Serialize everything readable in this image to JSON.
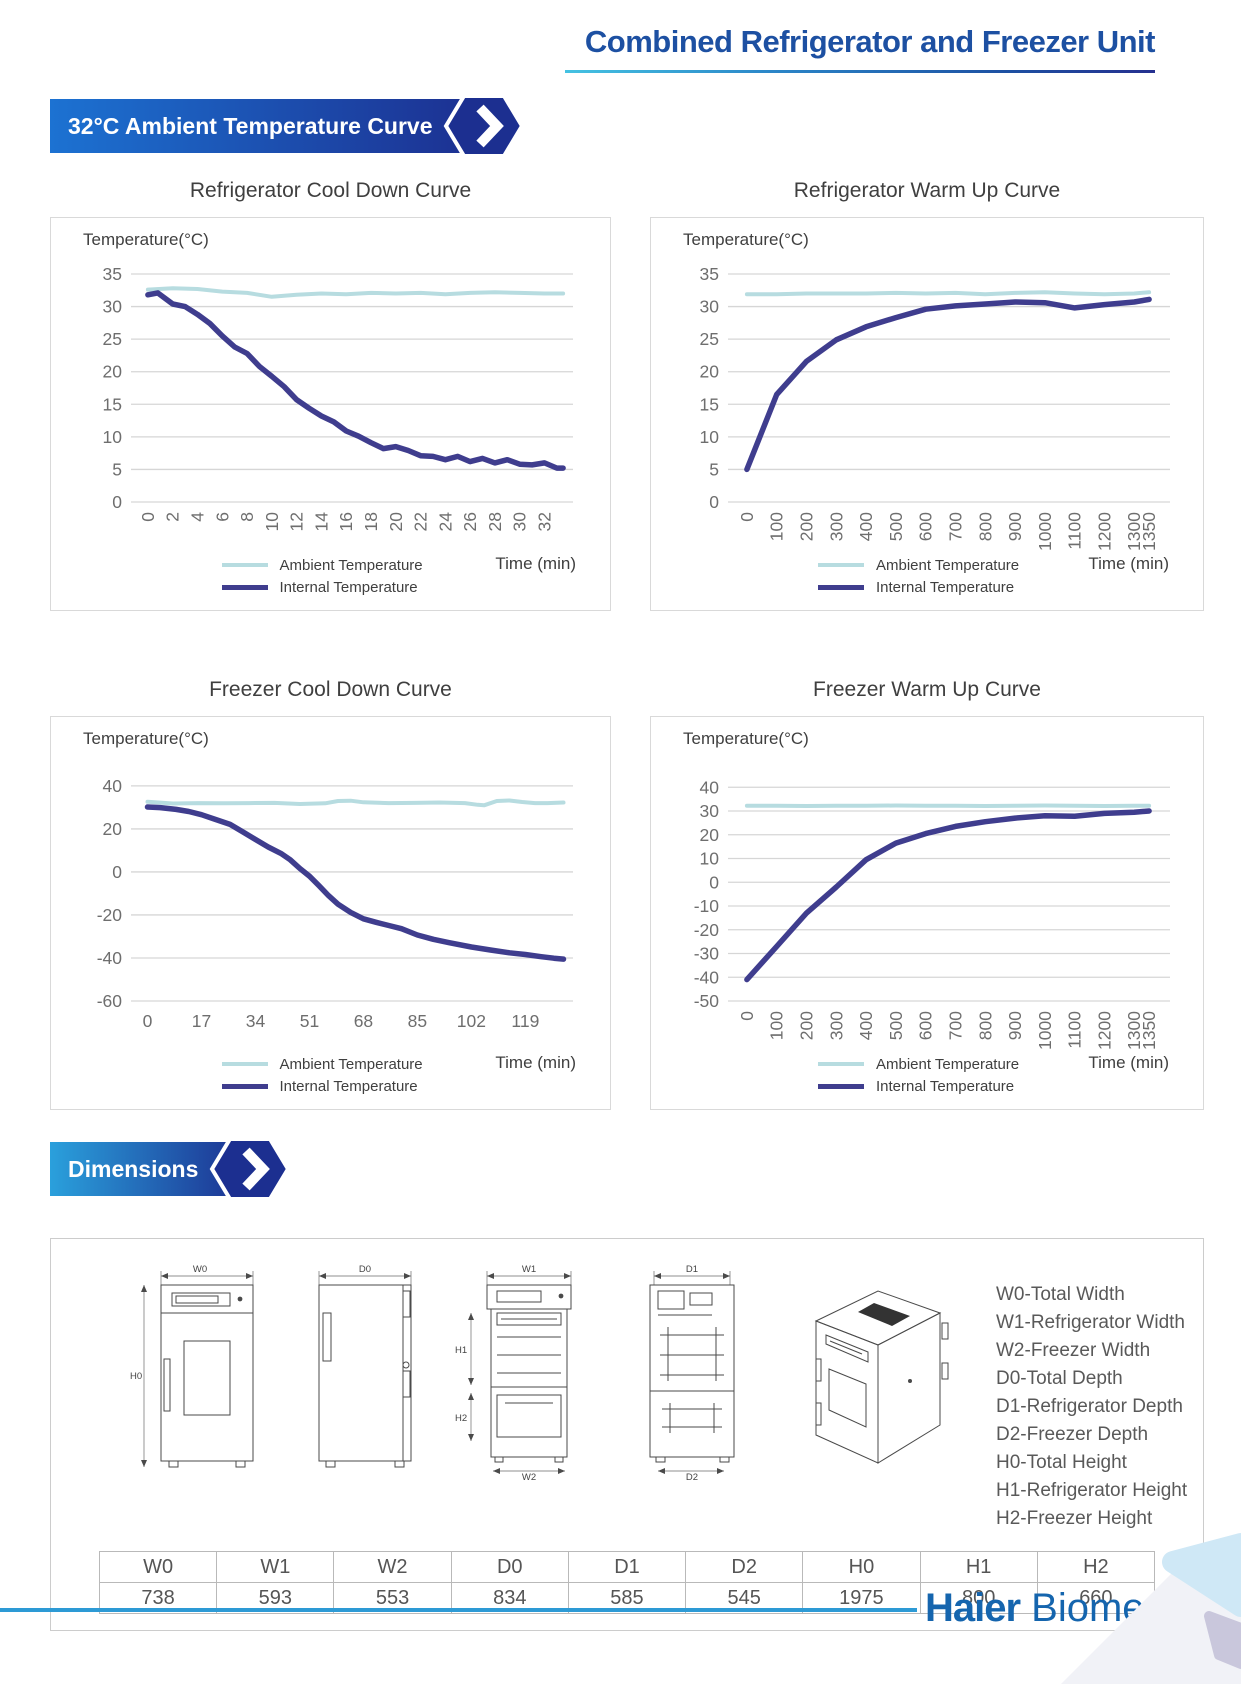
{
  "header": {
    "title": "Combined Refrigerator and Freezer Unit"
  },
  "sections": {
    "curves": "32°C Ambient Temperature Curve",
    "dimensions": "Dimensions"
  },
  "footer": {
    "brand_bold": "Haier",
    "brand_rest": " Biomedical"
  },
  "colors": {
    "accent_blue": "#1d50a2",
    "banner_start": "#1c72d2",
    "banner_end": "#1c2f90",
    "ambient_line": "#b7dce0",
    "internal_line": "#3f3d8e",
    "grid": "#d6d6d6",
    "footer_rule": "#2d9ad5"
  },
  "chart_data": [
    {
      "type": "line",
      "title": "Refrigerator Cool Down Curve",
      "ylabel": "Temperature(°C)",
      "xlabel": "Time (min)",
      "ylim": [
        0,
        35
      ],
      "yticks": [
        35,
        30,
        25,
        20,
        15,
        10,
        5,
        0
      ],
      "xlim": [
        -0.8,
        34.3
      ],
      "xticks": [
        0,
        2,
        4,
        6,
        8,
        10,
        12,
        14,
        16,
        18,
        20,
        22,
        24,
        26,
        28,
        30,
        32
      ],
      "x_tick_rotated": true,
      "grid": true,
      "legend_position": "bottom",
      "series": [
        {
          "name": "Ambient Temperature",
          "x": [
            0,
            2,
            4,
            6,
            8,
            10,
            12,
            14,
            16,
            18,
            20,
            22,
            24,
            26,
            28,
            30,
            32,
            33.5
          ],
          "y": [
            32.6,
            32.8,
            32.7,
            32.3,
            32.1,
            31.5,
            31.8,
            32.0,
            31.9,
            32.1,
            32.0,
            32.1,
            31.9,
            32.1,
            32.2,
            32.1,
            32.0,
            32.0
          ]
        },
        {
          "name": "Internal Temperature",
          "x": [
            0,
            0.8,
            2,
            3,
            4,
            5,
            6,
            7,
            8,
            9,
            10,
            11,
            12,
            13,
            14,
            15,
            16,
            17,
            18,
            19,
            20,
            21,
            22,
            23,
            24,
            25,
            26,
            27,
            28,
            29,
            30,
            31,
            32,
            33,
            33.5
          ],
          "y": [
            31.8,
            32.1,
            30.4,
            30.0,
            28.8,
            27.4,
            25.5,
            23.8,
            22.8,
            20.8,
            19.3,
            17.7,
            15.7,
            14.4,
            13.2,
            12.3,
            10.9,
            10.1,
            9.1,
            8.2,
            8.5,
            7.9,
            7.1,
            7.0,
            6.5,
            7.0,
            6.2,
            6.7,
            6.0,
            6.5,
            5.8,
            5.7,
            6.0,
            5.2,
            5.2
          ]
        }
      ]
    },
    {
      "type": "line",
      "title": "Refrigerator Warm Up Curve",
      "ylabel": "Temperature(°C)",
      "xlabel": "Time (min)",
      "ylim": [
        0,
        35
      ],
      "yticks": [
        35,
        30,
        25,
        20,
        15,
        10,
        5,
        0
      ],
      "xlim": [
        -40,
        1420
      ],
      "xticks": [
        0,
        100,
        200,
        300,
        400,
        500,
        600,
        700,
        800,
        900,
        1000,
        1100,
        1200,
        1300,
        1350
      ],
      "x_tick_rotated": true,
      "grid": true,
      "legend_position": "bottom",
      "series": [
        {
          "name": "Ambient Temperature",
          "x": [
            0,
            100,
            200,
            300,
            400,
            500,
            600,
            700,
            800,
            900,
            1000,
            1100,
            1200,
            1300,
            1350
          ],
          "y": [
            31.9,
            31.9,
            32.0,
            32.0,
            32.0,
            32.1,
            32.0,
            32.1,
            31.9,
            32.1,
            32.2,
            32.0,
            31.9,
            32.0,
            32.2
          ]
        },
        {
          "name": "Internal Temperature",
          "x": [
            0,
            100,
            200,
            300,
            400,
            500,
            600,
            700,
            800,
            900,
            1000,
            1100,
            1200,
            1300,
            1350
          ],
          "y": [
            5.0,
            16.5,
            21.6,
            24.9,
            26.9,
            28.3,
            29.6,
            30.1,
            30.4,
            30.7,
            30.6,
            29.8,
            30.3,
            30.7,
            31.1
          ]
        }
      ]
    },
    {
      "type": "line",
      "title": "Freezer Cool Down Curve",
      "ylabel": "Temperature(°C)",
      "xlabel": "Time (min)",
      "ylim": [
        -60,
        46
      ],
      "yticks": [
        40,
        20,
        0,
        -20,
        -40,
        -60
      ],
      "xlim": [
        -3,
        134
      ],
      "xticks": [
        0,
        17,
        34,
        51,
        68,
        85,
        102,
        119
      ],
      "x_tick_rotated": false,
      "grid": true,
      "legend_position": "bottom",
      "series": [
        {
          "name": "Ambient Temperature",
          "x": [
            0,
            8,
            16,
            24,
            32,
            40,
            48,
            56,
            60,
            64,
            68,
            76,
            84,
            92,
            100,
            104,
            106,
            110,
            114,
            118,
            122,
            126,
            131
          ],
          "y": [
            32.6,
            31.8,
            32.0,
            31.9,
            32.0,
            32.1,
            31.6,
            31.9,
            33.0,
            33.1,
            32.4,
            32.0,
            32.1,
            32.3,
            32.0,
            31.2,
            31.0,
            33.0,
            33.2,
            32.5,
            32.0,
            32.0,
            32.3
          ]
        },
        {
          "name": "Internal Temperature",
          "x": [
            0,
            4,
            9,
            13,
            17,
            21,
            26,
            30,
            34,
            38,
            42,
            45,
            48,
            51,
            54,
            57,
            60,
            64,
            68,
            72,
            76,
            80,
            85,
            90,
            95,
            102,
            108,
            114,
            119,
            124,
            128,
            131
          ],
          "y": [
            30.2,
            29.9,
            29.1,
            28.1,
            26.6,
            24.6,
            22.1,
            18.6,
            15.1,
            11.6,
            8.6,
            5.6,
            1.6,
            -2.0,
            -6.4,
            -11.0,
            -15.0,
            -18.8,
            -21.8,
            -23.4,
            -24.9,
            -26.4,
            -29.3,
            -31.3,
            -32.9,
            -34.9,
            -36.3,
            -37.6,
            -38.4,
            -39.4,
            -40.1,
            -40.5
          ]
        }
      ]
    },
    {
      "type": "line",
      "title": "Freezer Warm Up Curve",
      "ylabel": "Temperature(°C)",
      "xlabel": "Time (min)",
      "ylim": [
        -50,
        46
      ],
      "yticks": [
        40,
        30,
        20,
        10,
        0,
        -10,
        -20,
        -30,
        -40,
        -50
      ],
      "xlim": [
        -40,
        1420
      ],
      "xticks": [
        0,
        100,
        200,
        300,
        400,
        500,
        600,
        700,
        800,
        900,
        1000,
        1100,
        1200,
        1300,
        1350
      ],
      "x_tick_rotated": true,
      "grid": true,
      "legend_position": "bottom",
      "series": [
        {
          "name": "Ambient Temperature",
          "x": [
            0,
            100,
            200,
            300,
            400,
            500,
            600,
            700,
            800,
            900,
            1000,
            1100,
            1200,
            1300,
            1350
          ],
          "y": [
            32.2,
            32.2,
            32.1,
            32.2,
            32.2,
            32.3,
            32.2,
            32.2,
            32.1,
            32.2,
            32.3,
            32.2,
            32.1,
            32.2,
            32.2
          ]
        },
        {
          "name": "Internal Temperature",
          "x": [
            0,
            100,
            200,
            300,
            400,
            500,
            600,
            700,
            800,
            900,
            1000,
            1100,
            1200,
            1300,
            1350
          ],
          "y": [
            -41,
            -27,
            -13,
            -2,
            9.5,
            16.5,
            20.5,
            23.5,
            25.5,
            27,
            28,
            27.8,
            29,
            29.5,
            30
          ]
        }
      ]
    }
  ],
  "dimensions": {
    "legend": [
      "W0-Total Width",
      "W1-Refrigerator Width",
      "W2-Freezer Width",
      "D0-Total Depth",
      "D1-Refrigerator Depth",
      "D2-Freezer Depth",
      "H0-Total Height",
      "H1-Refrigerator Height",
      "H2-Freezer Height"
    ],
    "drawing_labels": {
      "w0": "W0",
      "h0": "H0",
      "d0": "D0",
      "w1": "W1",
      "h1": "H1",
      "h2": "H2",
      "w2": "W2",
      "d1": "D1",
      "d2": "D2"
    },
    "table": {
      "headers": [
        "W0",
        "W1",
        "W2",
        "D0",
        "D1",
        "D2",
        "H0",
        "H1",
        "H2"
      ],
      "values": [
        "738",
        "593",
        "553",
        "834",
        "585",
        "545",
        "1975",
        "800",
        "660"
      ]
    }
  }
}
